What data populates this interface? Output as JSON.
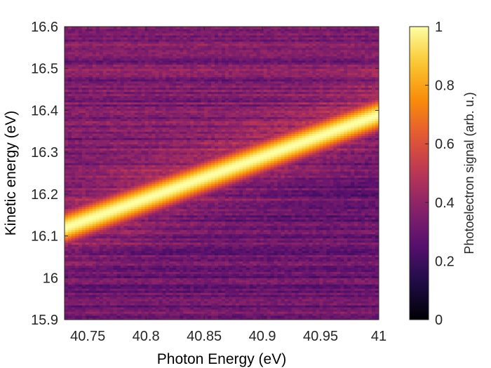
{
  "chart_data": {
    "type": "heatmap",
    "xlabel": "Photon Energy (eV)",
    "ylabel": "Kinetic energy (eV)",
    "xlim": [
      40.73,
      41.0
    ],
    "ylim": [
      15.9,
      16.6
    ],
    "x_ticks": [
      {
        "value": 40.75,
        "label": "40.75"
      },
      {
        "value": 40.8,
        "label": "40.8"
      },
      {
        "value": 40.85,
        "label": "40.85"
      },
      {
        "value": 40.9,
        "label": "40.9"
      },
      {
        "value": 40.95,
        "label": "40.95"
      },
      {
        "value": 41.0,
        "label": "41"
      }
    ],
    "y_ticks": [
      {
        "value": 15.9,
        "label": "15.9"
      },
      {
        "value": 16.0,
        "label": "16"
      },
      {
        "value": 16.1,
        "label": "16.1"
      },
      {
        "value": 16.2,
        "label": "16.2"
      },
      {
        "value": 16.3,
        "label": "16.3"
      },
      {
        "value": 16.4,
        "label": "16.4"
      },
      {
        "value": 16.5,
        "label": "16.5"
      },
      {
        "value": 16.6,
        "label": "16.6"
      }
    ],
    "colorbar": {
      "label": "Photoelectron signal (arb. u.)",
      "range": [
        0,
        1
      ],
      "colormap": "inferno",
      "ticks": [
        {
          "value": 0,
          "label": "0"
        },
        {
          "value": 0.2,
          "label": "0.2"
        },
        {
          "value": 0.4,
          "label": "0.4"
        },
        {
          "value": 0.6,
          "label": "0.6"
        },
        {
          "value": 0.8,
          "label": "0.8"
        },
        {
          "value": 1,
          "label": "1"
        }
      ]
    },
    "peak_ridge": {
      "x": [
        40.73,
        40.8,
        40.85,
        40.9,
        40.95,
        41.0
      ],
      "y": [
        16.12,
        16.19,
        16.24,
        16.29,
        16.34,
        16.39
      ],
      "width_ev": 0.045,
      "peak_signal": 1.0
    },
    "background": {
      "upper_left_signal": 0.35,
      "lower_right_signal": 0.3,
      "noise": 0.12
    },
    "grid": false
  }
}
